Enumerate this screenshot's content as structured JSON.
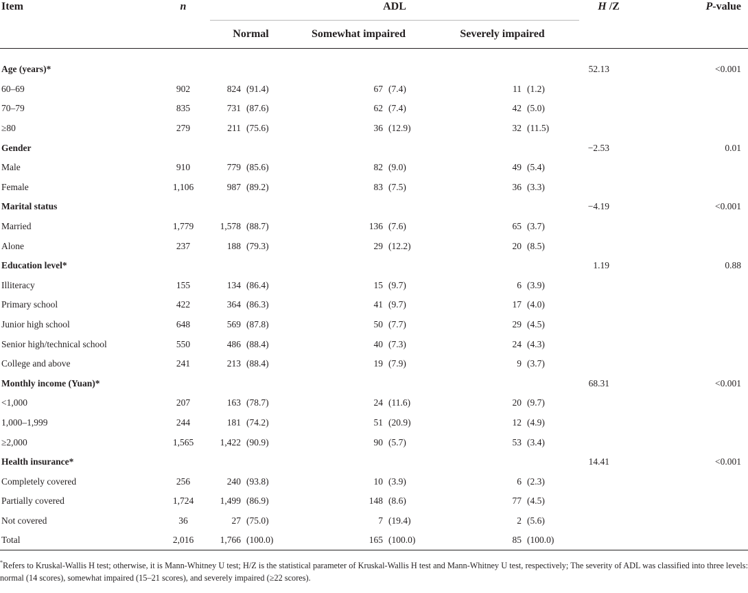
{
  "header": {
    "item": "Item",
    "n": "n",
    "adl": "ADL",
    "normal": "Normal",
    "somewhat": "Somewhat impaired",
    "severe": "Severely impaired",
    "hz_italic": "H",
    "hz_rest": " /Z",
    "p_italic": "P",
    "p_rest": "-value"
  },
  "rows": [
    {
      "type": "group",
      "label": "Age (years)*",
      "hz": "52.13",
      "p": "<0.001"
    },
    {
      "type": "data",
      "label": "60–69",
      "n": "902",
      "normal_n": "824",
      "normal_pct": "(91.4)",
      "some_n": "67",
      "some_pct": "(7.4)",
      "sev_n": "11",
      "sev_pct": "(1.2)"
    },
    {
      "type": "data",
      "label": "70–79",
      "n": "835",
      "normal_n": "731",
      "normal_pct": "(87.6)",
      "some_n": "62",
      "some_pct": "(7.4)",
      "sev_n": "42",
      "sev_pct": "(5.0)"
    },
    {
      "type": "data",
      "label": "≥80",
      "n": "279",
      "normal_n": "211",
      "normal_pct": "(75.6)",
      "some_n": "36",
      "some_pct": "(12.9)",
      "sev_n": "32",
      "sev_pct": "(11.5)"
    },
    {
      "type": "group",
      "label": "Gender",
      "hz": "−2.53",
      "p": "0.01"
    },
    {
      "type": "data",
      "label": "Male",
      "n": "910",
      "normal_n": "779",
      "normal_pct": "(85.6)",
      "some_n": "82",
      "some_pct": "(9.0)",
      "sev_n": "49",
      "sev_pct": "(5.4)"
    },
    {
      "type": "data",
      "label": "Female",
      "n": "1,106",
      "normal_n": "987",
      "normal_pct": "(89.2)",
      "some_n": "83",
      "some_pct": "(7.5)",
      "sev_n": "36",
      "sev_pct": "(3.3)"
    },
    {
      "type": "group",
      "label": "Marital status",
      "hz": "−4.19",
      "p": "<0.001"
    },
    {
      "type": "data",
      "label": "Married",
      "n": "1,779",
      "normal_n": "1,578",
      "normal_pct": "(88.7)",
      "some_n": "136",
      "some_pct": "(7.6)",
      "sev_n": "65",
      "sev_pct": "(3.7)"
    },
    {
      "type": "data",
      "label": "Alone",
      "n": "237",
      "normal_n": "188",
      "normal_pct": "(79.3)",
      "some_n": "29",
      "some_pct": "(12.2)",
      "sev_n": "20",
      "sev_pct": "(8.5)"
    },
    {
      "type": "group",
      "label": "Education level*",
      "hz": "1.19",
      "p": "0.88"
    },
    {
      "type": "data",
      "label": "Illiteracy",
      "n": "155",
      "normal_n": "134",
      "normal_pct": "(86.4)",
      "some_n": "15",
      "some_pct": "(9.7)",
      "sev_n": "6",
      "sev_pct": "(3.9)"
    },
    {
      "type": "data",
      "label": "Primary school",
      "n": "422",
      "normal_n": "364",
      "normal_pct": "(86.3)",
      "some_n": "41",
      "some_pct": "(9.7)",
      "sev_n": "17",
      "sev_pct": "(4.0)"
    },
    {
      "type": "data",
      "label": "Junior high school",
      "n": "648",
      "normal_n": "569",
      "normal_pct": "(87.8)",
      "some_n": "50",
      "some_pct": "(7.7)",
      "sev_n": "29",
      "sev_pct": "(4.5)"
    },
    {
      "type": "data",
      "label": "Senior high/technical school",
      "n": "550",
      "normal_n": "486",
      "normal_pct": "(88.4)",
      "some_n": "40",
      "some_pct": "(7.3)",
      "sev_n": "24",
      "sev_pct": "(4.3)"
    },
    {
      "type": "data",
      "label": "College and above",
      "n": "241",
      "normal_n": "213",
      "normal_pct": "(88.4)",
      "some_n": "19",
      "some_pct": "(7.9)",
      "sev_n": "9",
      "sev_pct": "(3.7)"
    },
    {
      "type": "group",
      "label": "Monthly income (Yuan)*",
      "hz": "68.31",
      "p": "<0.001"
    },
    {
      "type": "data",
      "label": "<1,000",
      "n": "207",
      "normal_n": "163",
      "normal_pct": "(78.7)",
      "some_n": "24",
      "some_pct": "(11.6)",
      "sev_n": "20",
      "sev_pct": "(9.7)"
    },
    {
      "type": "data",
      "label": "1,000–1,999",
      "n": "244",
      "normal_n": "181",
      "normal_pct": "(74.2)",
      "some_n": "51",
      "some_pct": "(20.9)",
      "sev_n": "12",
      "sev_pct": "(4.9)"
    },
    {
      "type": "data",
      "label": "≥2,000",
      "n": "1,565",
      "normal_n": "1,422",
      "normal_pct": "(90.9)",
      "some_n": "90",
      "some_pct": "(5.7)",
      "sev_n": "53",
      "sev_pct": "(3.4)"
    },
    {
      "type": "group",
      "label": "Health insurance*",
      "hz": "14.41",
      "p": "<0.001"
    },
    {
      "type": "data",
      "label": "Completely covered",
      "n": "256",
      "normal_n": "240",
      "normal_pct": "(93.8)",
      "some_n": "10",
      "some_pct": "(3.9)",
      "sev_n": "6",
      "sev_pct": "(2.3)"
    },
    {
      "type": "data",
      "label": "Partially covered",
      "n": "1,724",
      "normal_n": "1,499",
      "normal_pct": "(86.9)",
      "some_n": "148",
      "some_pct": "(8.6)",
      "sev_n": "77",
      "sev_pct": "(4.5)"
    },
    {
      "type": "data",
      "label": "Not covered",
      "n": "36",
      "normal_n": "27",
      "normal_pct": "(75.0)",
      "some_n": "7",
      "some_pct": "(19.4)",
      "sev_n": "2",
      "sev_pct": "(5.6)"
    },
    {
      "type": "data",
      "label": "Total",
      "n": "2,016",
      "normal_n": "1,766",
      "normal_pct": "(100.0)",
      "some_n": "165",
      "some_pct": "(100.0)",
      "sev_n": "85",
      "sev_pct": "(100.0)"
    }
  ],
  "footnote": {
    "marker": "*",
    "text": "Refers to Kruskal-Wallis H test; otherwise, it is Mann-Whitney U test; H/Z is the statistical parameter of Kruskal-Wallis H test and Mann-Whitney U test, respectively; The severity of ADL was classified into three levels: normal (14 scores), somewhat impaired (15–21 scores), and severely impaired (≥22 scores)."
  }
}
